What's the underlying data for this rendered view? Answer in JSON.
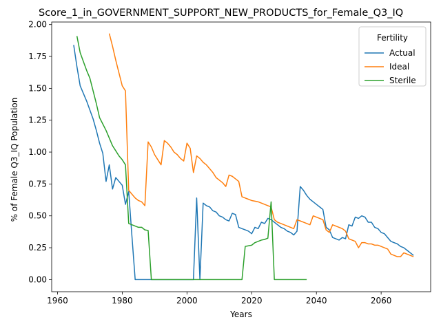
{
  "chart_data": {
    "type": "line",
    "title": "Score_1_in_GOVERNMENT_SUPPORT_NEW_PRODUCTS_for_Female_Q3_IQ",
    "xlabel": "Years",
    "ylabel": "% of Female Q3_IQ Population",
    "xlim": [
      1958.2,
      2075.3
    ],
    "ylim": [
      -0.095,
      2.02
    ],
    "xticks": [
      1960,
      1980,
      2000,
      2020,
      2040,
      2060
    ],
    "yticks": [
      0.0,
      0.25,
      0.5,
      0.75,
      1.0,
      1.25,
      1.5,
      1.75,
      2.0
    ],
    "xtick_labels": [
      "1960",
      "1980",
      "2000",
      "2020",
      "2040",
      "2060"
    ],
    "ytick_labels": [
      "0.00",
      "0.25",
      "0.50",
      "0.75",
      "1.00",
      "1.25",
      "1.50",
      "1.75",
      "2.00"
    ],
    "grid": false,
    "legend": {
      "title": "Fertility",
      "placement": "top-right"
    },
    "series": [
      {
        "name": "Actual",
        "color": "#1f77b4",
        "points": [
          [
            1965,
            1.84
          ],
          [
            1966,
            1.67
          ],
          [
            1967,
            1.52
          ],
          [
            1968,
            1.46
          ],
          [
            1969,
            1.4
          ],
          [
            1970,
            1.33
          ],
          [
            1971,
            1.26
          ],
          [
            1972,
            1.17
          ],
          [
            1973,
            1.07
          ],
          [
            1974,
            0.99
          ],
          [
            1975,
            0.77
          ],
          [
            1976,
            0.9
          ],
          [
            1977,
            0.71
          ],
          [
            1978,
            0.8
          ],
          [
            1979,
            0.77
          ],
          [
            1980,
            0.74
          ],
          [
            1981,
            0.59
          ],
          [
            1982,
            0.69
          ],
          [
            1983,
            0.34
          ],
          [
            1984,
            0.0
          ],
          [
            1990,
            0.0
          ],
          [
            2000,
            0.0
          ],
          [
            2002,
            0.0
          ],
          [
            2003,
            0.64
          ],
          [
            2004,
            0.0
          ],
          [
            2005,
            0.6
          ],
          [
            2006,
            0.58
          ],
          [
            2007,
            0.57
          ],
          [
            2008,
            0.54
          ],
          [
            2009,
            0.53
          ],
          [
            2010,
            0.5
          ],
          [
            2011,
            0.49
          ],
          [
            2012,
            0.47
          ],
          [
            2013,
            0.46
          ],
          [
            2014,
            0.52
          ],
          [
            2015,
            0.51
          ],
          [
            2016,
            0.41
          ],
          [
            2017,
            0.4
          ],
          [
            2018,
            0.39
          ],
          [
            2019,
            0.38
          ],
          [
            2020,
            0.36
          ],
          [
            2021,
            0.41
          ],
          [
            2022,
            0.4
          ],
          [
            2023,
            0.45
          ],
          [
            2024,
            0.44
          ],
          [
            2025,
            0.48
          ],
          [
            2026,
            0.47
          ],
          [
            2027,
            0.45
          ],
          [
            2028,
            0.43
          ],
          [
            2029,
            0.41
          ],
          [
            2030,
            0.4
          ],
          [
            2031,
            0.38
          ],
          [
            2032,
            0.37
          ],
          [
            2033,
            0.35
          ],
          [
            2034,
            0.38
          ],
          [
            2035,
            0.73
          ],
          [
            2036,
            0.7
          ],
          [
            2037,
            0.66
          ],
          [
            2038,
            0.63
          ],
          [
            2039,
            0.61
          ],
          [
            2040,
            0.59
          ],
          [
            2041,
            0.57
          ],
          [
            2042,
            0.55
          ],
          [
            2043,
            0.41
          ],
          [
            2044,
            0.39
          ],
          [
            2045,
            0.33
          ],
          [
            2046,
            0.32
          ],
          [
            2047,
            0.31
          ],
          [
            2048,
            0.33
          ],
          [
            2049,
            0.32
          ],
          [
            2050,
            0.43
          ],
          [
            2051,
            0.42
          ],
          [
            2052,
            0.49
          ],
          [
            2053,
            0.48
          ],
          [
            2054,
            0.5
          ],
          [
            2055,
            0.49
          ],
          [
            2056,
            0.45
          ],
          [
            2057,
            0.45
          ],
          [
            2058,
            0.41
          ],
          [
            2059,
            0.4
          ],
          [
            2060,
            0.37
          ],
          [
            2061,
            0.36
          ],
          [
            2062,
            0.33
          ],
          [
            2063,
            0.3
          ],
          [
            2064,
            0.29
          ],
          [
            2065,
            0.28
          ],
          [
            2066,
            0.26
          ],
          [
            2067,
            0.25
          ],
          [
            2068,
            0.23
          ],
          [
            2069,
            0.21
          ],
          [
            2070,
            0.19
          ]
        ]
      },
      {
        "name": "Ideal",
        "color": "#ff7f0e",
        "points": [
          [
            1976,
            1.93
          ],
          [
            1977,
            1.83
          ],
          [
            1978,
            1.72
          ],
          [
            1979,
            1.62
          ],
          [
            1980,
            1.52
          ],
          [
            1981,
            1.48
          ],
          [
            1982,
            0.7
          ],
          [
            1983,
            0.67
          ],
          [
            1984,
            0.64
          ],
          [
            1985,
            0.62
          ],
          [
            1986,
            0.61
          ],
          [
            1987,
            0.58
          ],
          [
            1988,
            1.08
          ],
          [
            1989,
            1.04
          ],
          [
            1990,
            0.98
          ],
          [
            1991,
            0.94
          ],
          [
            1992,
            0.9
          ],
          [
            1993,
            1.09
          ],
          [
            1994,
            1.07
          ],
          [
            1995,
            1.04
          ],
          [
            1996,
            1.0
          ],
          [
            1997,
            0.98
          ],
          [
            1998,
            0.95
          ],
          [
            1999,
            0.93
          ],
          [
            2000,
            1.07
          ],
          [
            2001,
            1.03
          ],
          [
            2002,
            0.84
          ],
          [
            2003,
            0.97
          ],
          [
            2004,
            0.95
          ],
          [
            2005,
            0.92
          ],
          [
            2006,
            0.9
          ],
          [
            2007,
            0.87
          ],
          [
            2008,
            0.84
          ],
          [
            2009,
            0.8
          ],
          [
            2010,
            0.78
          ],
          [
            2011,
            0.76
          ],
          [
            2012,
            0.73
          ],
          [
            2013,
            0.82
          ],
          [
            2014,
            0.81
          ],
          [
            2015,
            0.79
          ],
          [
            2016,
            0.77
          ],
          [
            2017,
            0.65
          ],
          [
            2018,
            0.64
          ],
          [
            2019,
            0.63
          ],
          [
            2020,
            0.62
          ],
          [
            2021,
            0.615
          ],
          [
            2022,
            0.61
          ],
          [
            2023,
            0.6
          ],
          [
            2024,
            0.59
          ],
          [
            2025,
            0.58
          ],
          [
            2026,
            0.57
          ],
          [
            2027,
            0.47
          ],
          [
            2028,
            0.45
          ],
          [
            2029,
            0.44
          ],
          [
            2030,
            0.43
          ],
          [
            2031,
            0.42
          ],
          [
            2032,
            0.41
          ],
          [
            2033,
            0.4
          ],
          [
            2034,
            0.47
          ],
          [
            2035,
            0.46
          ],
          [
            2036,
            0.45
          ],
          [
            2037,
            0.44
          ],
          [
            2038,
            0.43
          ],
          [
            2039,
            0.5
          ],
          [
            2040,
            0.49
          ],
          [
            2041,
            0.48
          ],
          [
            2042,
            0.47
          ],
          [
            2043,
            0.39
          ],
          [
            2044,
            0.37
          ],
          [
            2045,
            0.43
          ],
          [
            2046,
            0.42
          ],
          [
            2047,
            0.41
          ],
          [
            2048,
            0.4
          ],
          [
            2049,
            0.38
          ],
          [
            2050,
            0.32
          ],
          [
            2051,
            0.31
          ],
          [
            2052,
            0.3
          ],
          [
            2053,
            0.25
          ],
          [
            2054,
            0.29
          ],
          [
            2055,
            0.29
          ],
          [
            2056,
            0.28
          ],
          [
            2057,
            0.28
          ],
          [
            2058,
            0.27
          ],
          [
            2059,
            0.27
          ],
          [
            2060,
            0.26
          ],
          [
            2061,
            0.25
          ],
          [
            2062,
            0.24
          ],
          [
            2063,
            0.2
          ],
          [
            2064,
            0.19
          ],
          [
            2065,
            0.18
          ],
          [
            2066,
            0.18
          ],
          [
            2067,
            0.21
          ],
          [
            2068,
            0.2
          ],
          [
            2069,
            0.19
          ],
          [
            2070,
            0.18
          ]
        ]
      },
      {
        "name": "Sterile",
        "color": "#2ca02c",
        "points": [
          [
            1966,
            1.91
          ],
          [
            1967,
            1.78
          ],
          [
            1968,
            1.71
          ],
          [
            1969,
            1.64
          ],
          [
            1970,
            1.58
          ],
          [
            1971,
            1.48
          ],
          [
            1972,
            1.38
          ],
          [
            1973,
            1.27
          ],
          [
            1974,
            1.22
          ],
          [
            1975,
            1.17
          ],
          [
            1976,
            1.11
          ],
          [
            1977,
            1.05
          ],
          [
            1978,
            1.01
          ],
          [
            1979,
            0.97
          ],
          [
            1980,
            0.94
          ],
          [
            1981,
            0.9
          ],
          [
            1982,
            0.44
          ],
          [
            1983,
            0.43
          ],
          [
            1984,
            0.42
          ],
          [
            1985,
            0.41
          ],
          [
            1986,
            0.41
          ],
          [
            1987,
            0.39
          ],
          [
            1988,
            0.385
          ],
          [
            1989,
            0.0
          ],
          [
            2000,
            0.0
          ],
          [
            2010,
            0.0
          ],
          [
            2017,
            0.0
          ],
          [
            2018,
            0.26
          ],
          [
            2019,
            0.265
          ],
          [
            2020,
            0.27
          ],
          [
            2021,
            0.29
          ],
          [
            2022,
            0.3
          ],
          [
            2023,
            0.31
          ],
          [
            2024,
            0.315
          ],
          [
            2025,
            0.325
          ],
          [
            2026,
            0.61
          ],
          [
            2027,
            0.0
          ],
          [
            2030,
            0.0
          ],
          [
            2037,
            0.0
          ]
        ]
      }
    ]
  }
}
